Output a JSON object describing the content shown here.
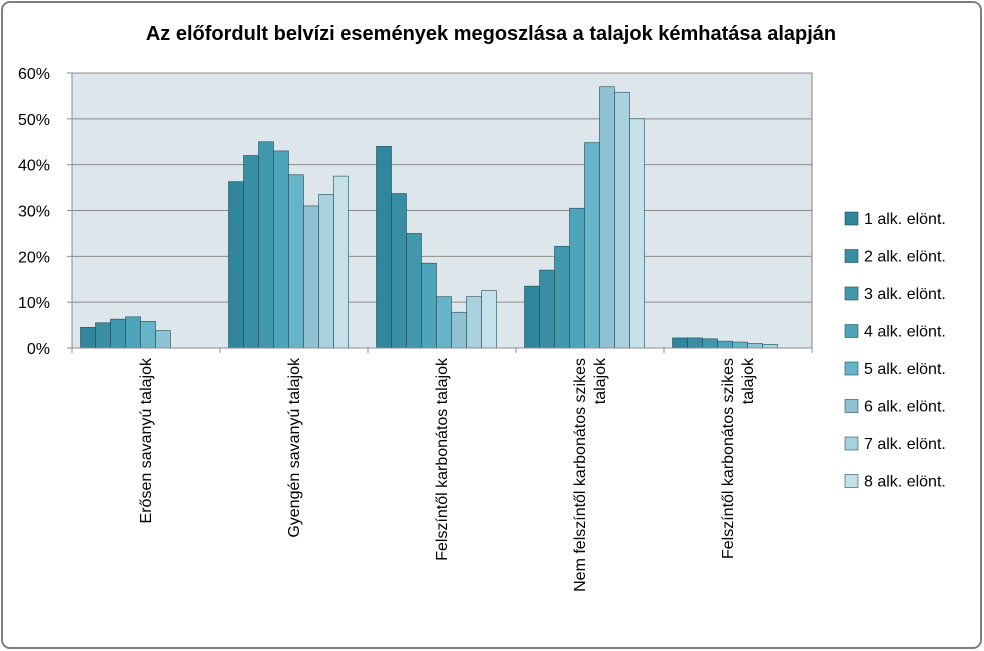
{
  "chart_data": {
    "type": "bar",
    "title": "Az előfordult belvízi események megoszlása a talajok kémhatása alapján",
    "xlabel": "",
    "ylabel": "",
    "ylim": [
      0,
      0.6
    ],
    "yticks": [
      "0%",
      "10%",
      "20%",
      "30%",
      "40%",
      "50%",
      "60%"
    ],
    "grid": true,
    "legend_position": "right",
    "categories": [
      [
        "Erősen savanyú talajok"
      ],
      [
        "Gyengén savanyú talajok"
      ],
      [
        "Felszíntől karbonátos talajok"
      ],
      [
        "Nem felszíntől karbonátos szikes",
        "talajok"
      ],
      [
        "Felszíntől karbonátos szikes",
        "talajok"
      ]
    ],
    "series": [
      {
        "name": "1 alk. elönt.",
        "color": "#31859c",
        "values": [
          0.045,
          0.363,
          0.44,
          0.135,
          0.022
        ]
      },
      {
        "name": "2 alk. elönt.",
        "color": "#3a8ea4",
        "values": [
          0.055,
          0.42,
          0.337,
          0.17,
          0.022
        ]
      },
      {
        "name": "3 alk. elönt.",
        "color": "#4198ad",
        "values": [
          0.063,
          0.45,
          0.25,
          0.222,
          0.02
        ]
      },
      {
        "name": "4 alk. elönt.",
        "color": "#4ea5bb",
        "values": [
          0.068,
          0.43,
          0.185,
          0.305,
          0.015
        ]
      },
      {
        "name": "5 alk. elönt.",
        "color": "#67b3c7",
        "values": [
          0.058,
          0.378,
          0.112,
          0.448,
          0.013
        ]
      },
      {
        "name": "6 alk. elönt.",
        "color": "#8fc3d3",
        "values": [
          0.038,
          0.31,
          0.078,
          0.57,
          0.01
        ]
      },
      {
        "name": "7 alk. elönt.",
        "color": "#a9d2de",
        "values": [
          null,
          0.335,
          0.112,
          0.558,
          0.008
        ]
      },
      {
        "name": "8 alk. elönt.",
        "color": "#c4e0e8",
        "values": [
          null,
          0.375,
          0.125,
          0.5,
          null
        ]
      }
    ],
    "plot_background": "#dde6ea",
    "frame_color": "#7f7f7f"
  }
}
